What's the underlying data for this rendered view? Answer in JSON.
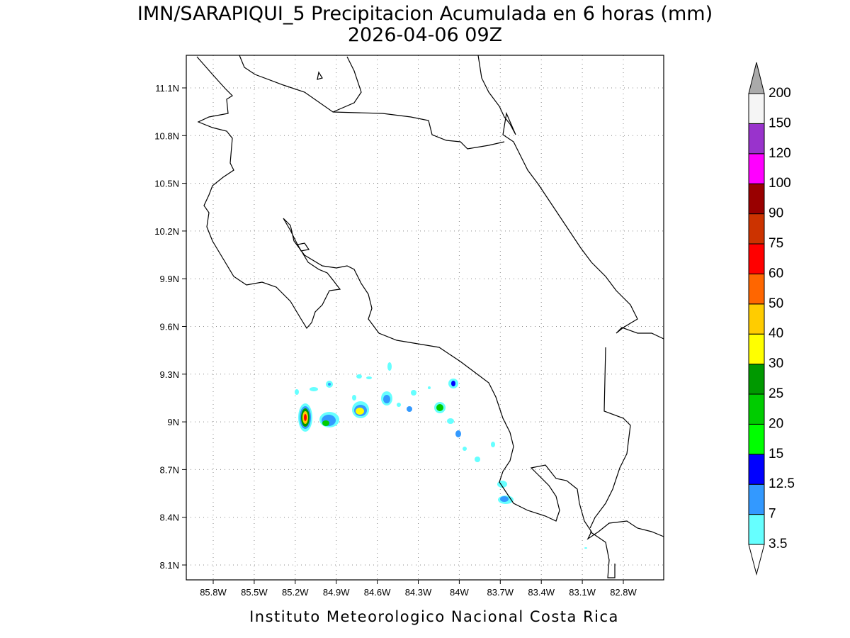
{
  "title": "IMN/SARAPIQUI_5 Precipitacion Acumulada en 6 horas (mm)",
  "subtitle": "2026-04-06 09Z",
  "x_axis": {
    "ticks": [
      "85.8W",
      "85.5W",
      "85.2W",
      "84.9W",
      "84.6W",
      "84.3W",
      "84W",
      "83.7W",
      "83.4W",
      "83.1W",
      "82.8W"
    ]
  },
  "y_axis": {
    "ticks": [
      "8.1N",
      "8.4N",
      "8.7N",
      "9N",
      "9.3N",
      "9.6N",
      "9.9N",
      "10.2N",
      "10.5N",
      "10.8N",
      "11.1N"
    ]
  },
  "colorbar": {
    "labels": [
      "3.5",
      "7",
      "12.5",
      "15",
      "20",
      "25",
      "30",
      "40",
      "50",
      "60",
      "75",
      "90",
      "100",
      "120",
      "150",
      "200"
    ],
    "colors": [
      "#66ffff",
      "#3399ff",
      "#0000ff",
      "#00ff00",
      "#00cc00",
      "#009900",
      "#ffff00",
      "#ffcc00",
      "#ff6600",
      "#ff0000",
      "#cc3300",
      "#990000",
      "#ff00ff",
      "#9933cc",
      "#f5f5f5"
    ],
    "over_color": "#aaaaaa",
    "under_color": "#ffffff"
  },
  "footer": "Instituto Meteorologico Nacional Costa Rica"
}
